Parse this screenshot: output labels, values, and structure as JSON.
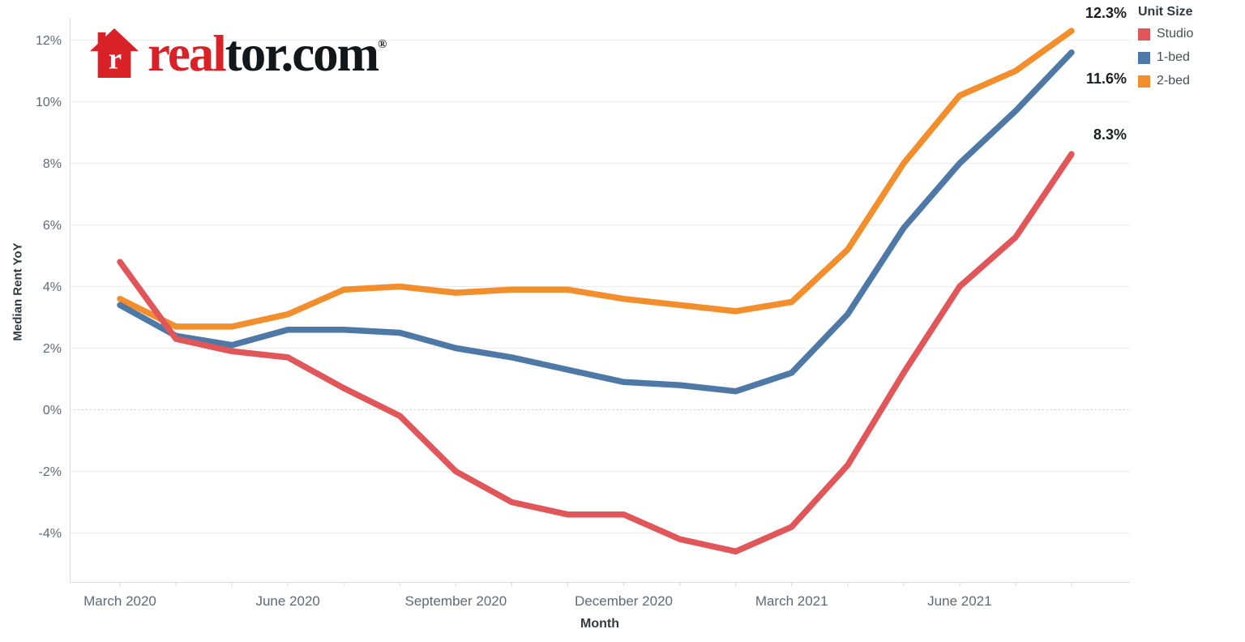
{
  "logo": {
    "text_red": "real",
    "text_black": "tor.com",
    "registered": "®",
    "brand_red": "#d92228"
  },
  "chart_data": {
    "type": "line",
    "title": "",
    "xlabel": "Month",
    "ylabel": "Median Rent YoY",
    "grid": "horizontal",
    "zero_line_style": "dotted",
    "legend_position": "top-right",
    "legend_title": "Unit Size",
    "ylim": [
      -5.6,
      13.4
    ],
    "y_ticks": [
      {
        "value": -4,
        "label": "-4%"
      },
      {
        "value": -2,
        "label": "-2%"
      },
      {
        "value": 0,
        "label": "0%"
      },
      {
        "value": 2,
        "label": "2%"
      },
      {
        "value": 4,
        "label": "4%"
      },
      {
        "value": 6,
        "label": "6%"
      },
      {
        "value": 8,
        "label": "8%"
      },
      {
        "value": 10,
        "label": "10%"
      },
      {
        "value": 12,
        "label": "12%"
      }
    ],
    "categories": [
      "March 2020",
      "April 2020",
      "May 2020",
      "June 2020",
      "July 2020",
      "August 2020",
      "September 2020",
      "October 2020",
      "November 2020",
      "December 2020",
      "January 2021",
      "February 2021",
      "March 2021",
      "April 2021",
      "May 2021",
      "June 2021",
      "July 2021",
      "August 2021"
    ],
    "x_tick_labels": [
      {
        "index": 0,
        "label": "March 2020"
      },
      {
        "index": 3,
        "label": "June 2020"
      },
      {
        "index": 6,
        "label": "September 2020"
      },
      {
        "index": 9,
        "label": "December 2020"
      },
      {
        "index": 12,
        "label": "March 2021"
      },
      {
        "index": 15,
        "label": "June 2021"
      }
    ],
    "series": [
      {
        "name": "Studio",
        "color": "#e15759",
        "end_label": "8.3%",
        "values": [
          4.8,
          2.3,
          1.9,
          1.7,
          0.7,
          -0.2,
          -2.0,
          -3.0,
          -3.4,
          -3.4,
          -4.2,
          -4.6,
          -3.8,
          -1.8,
          1.2,
          4.0,
          5.6,
          8.3
        ]
      },
      {
        "name": "1-bed",
        "color": "#4e79a7",
        "end_label": "11.6%",
        "values": [
          3.4,
          2.4,
          2.1,
          2.6,
          2.6,
          2.5,
          2.0,
          1.7,
          1.3,
          0.9,
          0.8,
          0.6,
          1.2,
          3.1,
          5.9,
          8.0,
          9.7,
          11.6
        ]
      },
      {
        "name": "2-bed",
        "color": "#f28e2b",
        "end_label": "12.3%",
        "values": [
          3.6,
          2.7,
          2.7,
          3.1,
          3.9,
          4.0,
          3.8,
          3.9,
          3.9,
          3.6,
          3.4,
          3.2,
          3.5,
          5.2,
          8.0,
          10.2,
          11.0,
          12.3
        ]
      }
    ]
  }
}
